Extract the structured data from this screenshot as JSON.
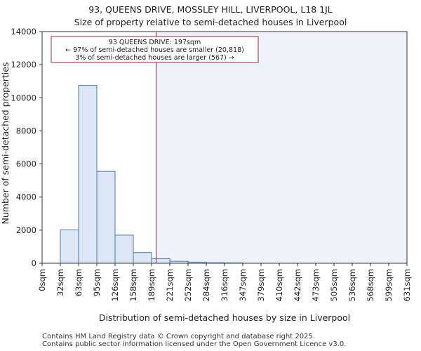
{
  "header": {
    "title_line1": "93, QUEENS DRIVE, MOSSLEY HILL, LIVERPOOL, L18 1JL",
    "title_line2": "Size of property relative to semi-detached houses in Liverpool"
  },
  "footer": {
    "line1": "Contains HM Land Registry data © Crown copyright and database right 2025.",
    "line2": "Contains public sector information licensed under the Open Government Licence v3.0."
  },
  "chart_data": {
    "type": "bar",
    "title": "93, QUEENS DRIVE, MOSSLEY HILL, LIVERPOOL, L18 1JL",
    "subtitle": "Size of property relative to semi-detached houses in Liverpool",
    "xlabel": "Distribution of semi-detached houses by size in Liverpool",
    "ylabel": "Number of semi-detached properties",
    "x_tick_labels": [
      "0sqm",
      "32sqm",
      "63sqm",
      "95sqm",
      "126sqm",
      "158sqm",
      "189sqm",
      "221sqm",
      "252sqm",
      "284sqm",
      "316sqm",
      "347sqm",
      "379sqm",
      "410sqm",
      "442sqm",
      "473sqm",
      "505sqm",
      "536sqm",
      "568sqm",
      "599sqm",
      "631sqm"
    ],
    "bin_edges": [
      0,
      32,
      63,
      95,
      126,
      158,
      189,
      221,
      252,
      284,
      316,
      347,
      379,
      410,
      442,
      473,
      505,
      536,
      568,
      599,
      631
    ],
    "values": [
      0,
      2020,
      10750,
      5550,
      1700,
      650,
      280,
      120,
      70,
      30,
      20,
      0,
      0,
      0,
      0,
      0,
      0,
      0,
      0,
      0
    ],
    "ylim": [
      0,
      14000
    ],
    "y_ticks": [
      0,
      2000,
      4000,
      6000,
      8000,
      10000,
      12000,
      14000
    ],
    "marker_value": 197,
    "bar_color": "#dce6f4",
    "bar_edge_color": "#4a78b8",
    "highlight_color": "#eef2fa",
    "marker_color": "#a0282a",
    "annotation": {
      "line1": "93 QUEENS DRIVE: 197sqm",
      "line2": "← 97% of semi-detached houses are smaller (20,818)",
      "line3": "3% of semi-detached houses are larger (567) →"
    }
  }
}
